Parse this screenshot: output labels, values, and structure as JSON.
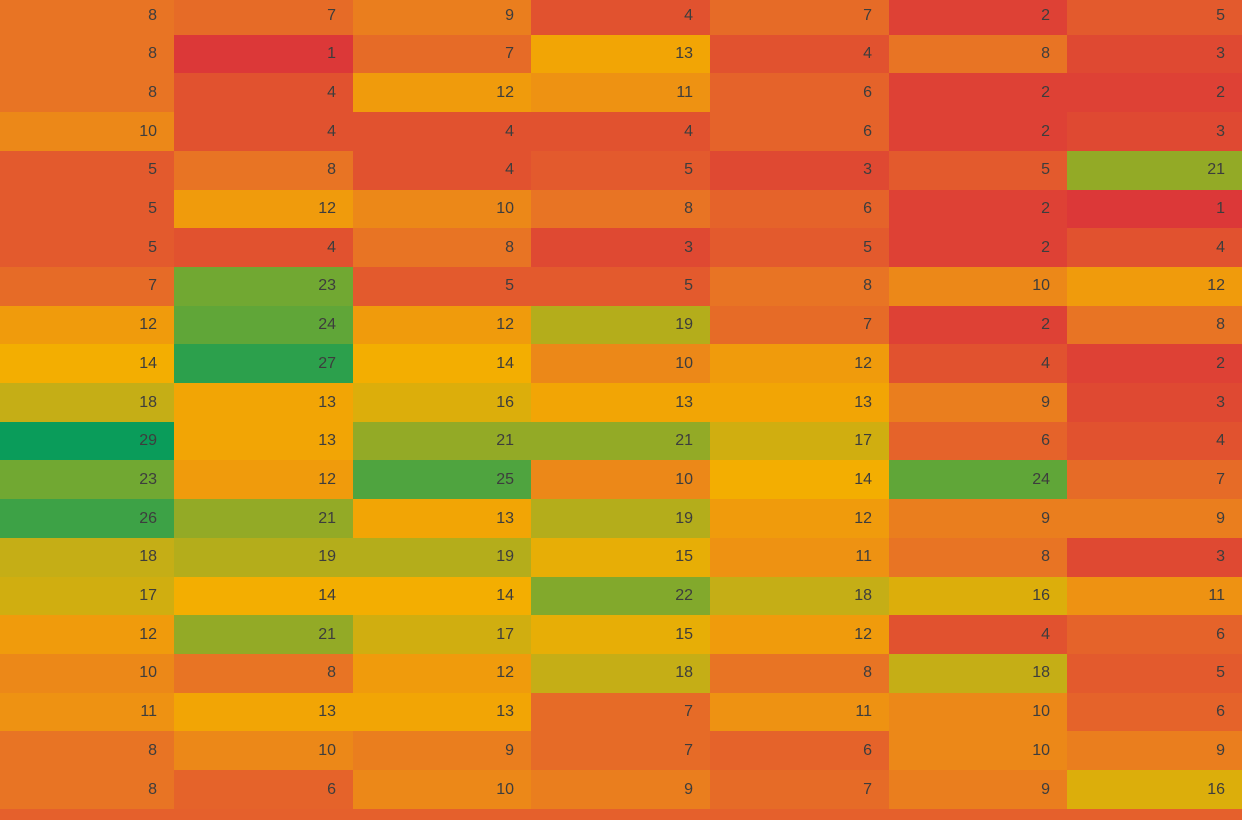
{
  "table": {
    "rows": [
      [
        8,
        7,
        9,
        4,
        7,
        2,
        5
      ],
      [
        8,
        1,
        7,
        13,
        4,
        8,
        3
      ],
      [
        8,
        4,
        12,
        11,
        6,
        2,
        2
      ],
      [
        10,
        4,
        4,
        4,
        6,
        2,
        3
      ],
      [
        5,
        8,
        4,
        5,
        3,
        5,
        21
      ],
      [
        5,
        12,
        10,
        8,
        6,
        2,
        1
      ],
      [
        5,
        4,
        8,
        3,
        5,
        2,
        4
      ],
      [
        7,
        23,
        5,
        5,
        8,
        10,
        12
      ],
      [
        12,
        24,
        12,
        19,
        7,
        2,
        8
      ],
      [
        14,
        27,
        14,
        10,
        12,
        4,
        2
      ],
      [
        18,
        13,
        16,
        13,
        13,
        9,
        3
      ],
      [
        29,
        13,
        21,
        21,
        17,
        6,
        4
      ],
      [
        23,
        12,
        25,
        10,
        14,
        24,
        7
      ],
      [
        26,
        21,
        13,
        19,
        12,
        9,
        9
      ],
      [
        18,
        19,
        19,
        15,
        11,
        8,
        3
      ],
      [
        17,
        14,
        14,
        22,
        18,
        16,
        11
      ],
      [
        12,
        21,
        17,
        15,
        12,
        4,
        6
      ],
      [
        10,
        8,
        12,
        18,
        8,
        18,
        5
      ],
      [
        11,
        13,
        13,
        7,
        11,
        10,
        6
      ],
      [
        8,
        10,
        9,
        7,
        6,
        10,
        9
      ],
      [
        8,
        6,
        10,
        9,
        7,
        9,
        16
      ]
    ]
  }
}
